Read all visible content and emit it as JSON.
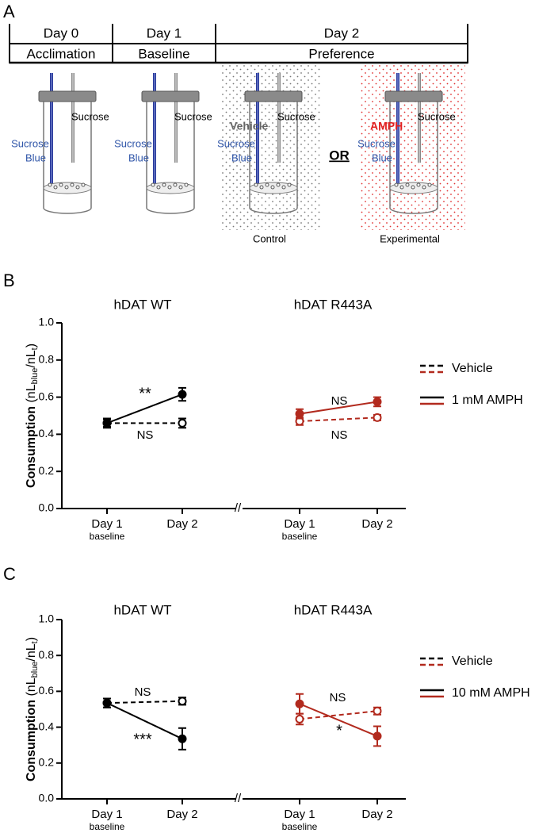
{
  "panel_a": {
    "label": "A",
    "days": [
      "Day 0",
      "Day 1",
      "Day 2"
    ],
    "phases": [
      "Acclimation",
      "Baseline",
      "Preference"
    ],
    "vials": [
      {
        "right": "Sucrose",
        "left": [
          "Sucrose",
          "Blue"
        ]
      },
      {
        "right": "Sucrose",
        "left": [
          "Sucrose",
          "Blue"
        ]
      },
      {
        "right": "Sucrose",
        "left": [
          "Sucrose",
          "Blue"
        ],
        "treatment": "Vehicle",
        "condition": "Control"
      },
      {
        "right": "Sucrose",
        "left": [
          "Sucrose",
          "Blue"
        ],
        "treatment": "AMPH",
        "condition": "Experimental"
      }
    ],
    "or": "OR"
  },
  "chart_data": [
    {
      "type": "line",
      "panel": "B",
      "ylabel": {
        "main": "Consumption",
        "open": "(nL",
        "sub1": "blue",
        "mid": "/nL",
        "sub2": "t",
        "close": ")"
      },
      "ylim": [
        0,
        1
      ],
      "yticks": [
        {
          "value": 0,
          "label": "0.0"
        },
        0.2,
        0.4,
        0.6,
        0.8,
        {
          "value": 1,
          "label": "1.0"
        }
      ],
      "break": "//",
      "legend": [
        {
          "name": "Vehicle",
          "dash": true
        },
        {
          "name": "1 mM AMPH",
          "dash": false
        }
      ],
      "groups": [
        {
          "title": "hDAT WT",
          "categories": [
            "Day 1",
            "Day 2"
          ],
          "note": "baseline",
          "series": [
            {
              "legend": 0,
              "color": "#000000",
              "dash": true,
              "marker": "open",
              "values": [
                0.46,
                0.46
              ],
              "errors": [
                0.02,
                0.025
              ]
            },
            {
              "legend": 1,
              "color": "#000000",
              "dash": false,
              "marker": "filled",
              "values": [
                0.46,
                0.615
              ],
              "errors": [
                0.025,
                0.035
              ]
            }
          ],
          "annotations": [
            "**",
            "NS"
          ]
        },
        {
          "title": "hDAT R443A",
          "categories": [
            "Day 1",
            "Day 2"
          ],
          "note": "baseline",
          "series": [
            {
              "legend": 0,
              "color": "#b22a1e",
              "dash": true,
              "marker": "open",
              "values": [
                0.47,
                0.49
              ],
              "errors": [
                0.02,
                0.015
              ]
            },
            {
              "legend": 1,
              "color": "#b22a1e",
              "dash": false,
              "marker": "filled",
              "values": [
                0.51,
                0.575
              ],
              "errors": [
                0.025,
                0.025
              ]
            }
          ],
          "annotations": [
            "NS",
            "NS"
          ]
        }
      ]
    },
    {
      "type": "line",
      "panel": "C",
      "ylabel": {
        "main": "Consumption",
        "open": "(nL",
        "sub1": "blue",
        "mid": "/nL",
        "sub2": "t",
        "close": ")"
      },
      "ylim": [
        0,
        1
      ],
      "yticks": [
        {
          "value": 0,
          "label": "0.0"
        },
        0.2,
        0.4,
        0.6,
        0.8,
        {
          "value": 1,
          "label": "1.0"
        }
      ],
      "break": "//",
      "legend": [
        {
          "name": "Vehicle",
          "dash": true
        },
        {
          "name": "10 mM AMPH",
          "dash": false
        }
      ],
      "groups": [
        {
          "title": "hDAT WT",
          "categories": [
            "Day 1",
            "Day 2"
          ],
          "note": "baseline",
          "series": [
            {
              "legend": 0,
              "color": "#000000",
              "dash": true,
              "marker": "open",
              "values": [
                0.535,
                0.545
              ],
              "errors": [
                0.025,
                0.02
              ]
            },
            {
              "legend": 1,
              "color": "#000000",
              "dash": false,
              "marker": "filled",
              "values": [
                0.535,
                0.335
              ],
              "errors": [
                0.025,
                0.06
              ]
            }
          ],
          "annotations": [
            "NS",
            "***"
          ]
        },
        {
          "title": "hDAT R443A",
          "categories": [
            "Day 1",
            "Day 2"
          ],
          "note": "baseline",
          "series": [
            {
              "legend": 0,
              "color": "#b22a1e",
              "dash": true,
              "marker": "open",
              "values": [
                0.445,
                0.49
              ],
              "errors": [
                0.03,
                0.02
              ]
            },
            {
              "legend": 1,
              "color": "#b22a1e",
              "dash": false,
              "marker": "filled",
              "values": [
                0.53,
                0.35
              ],
              "errors": [
                0.055,
                0.055
              ]
            }
          ],
          "annotations": [
            "NS",
            "*"
          ]
        }
      ]
    }
  ]
}
